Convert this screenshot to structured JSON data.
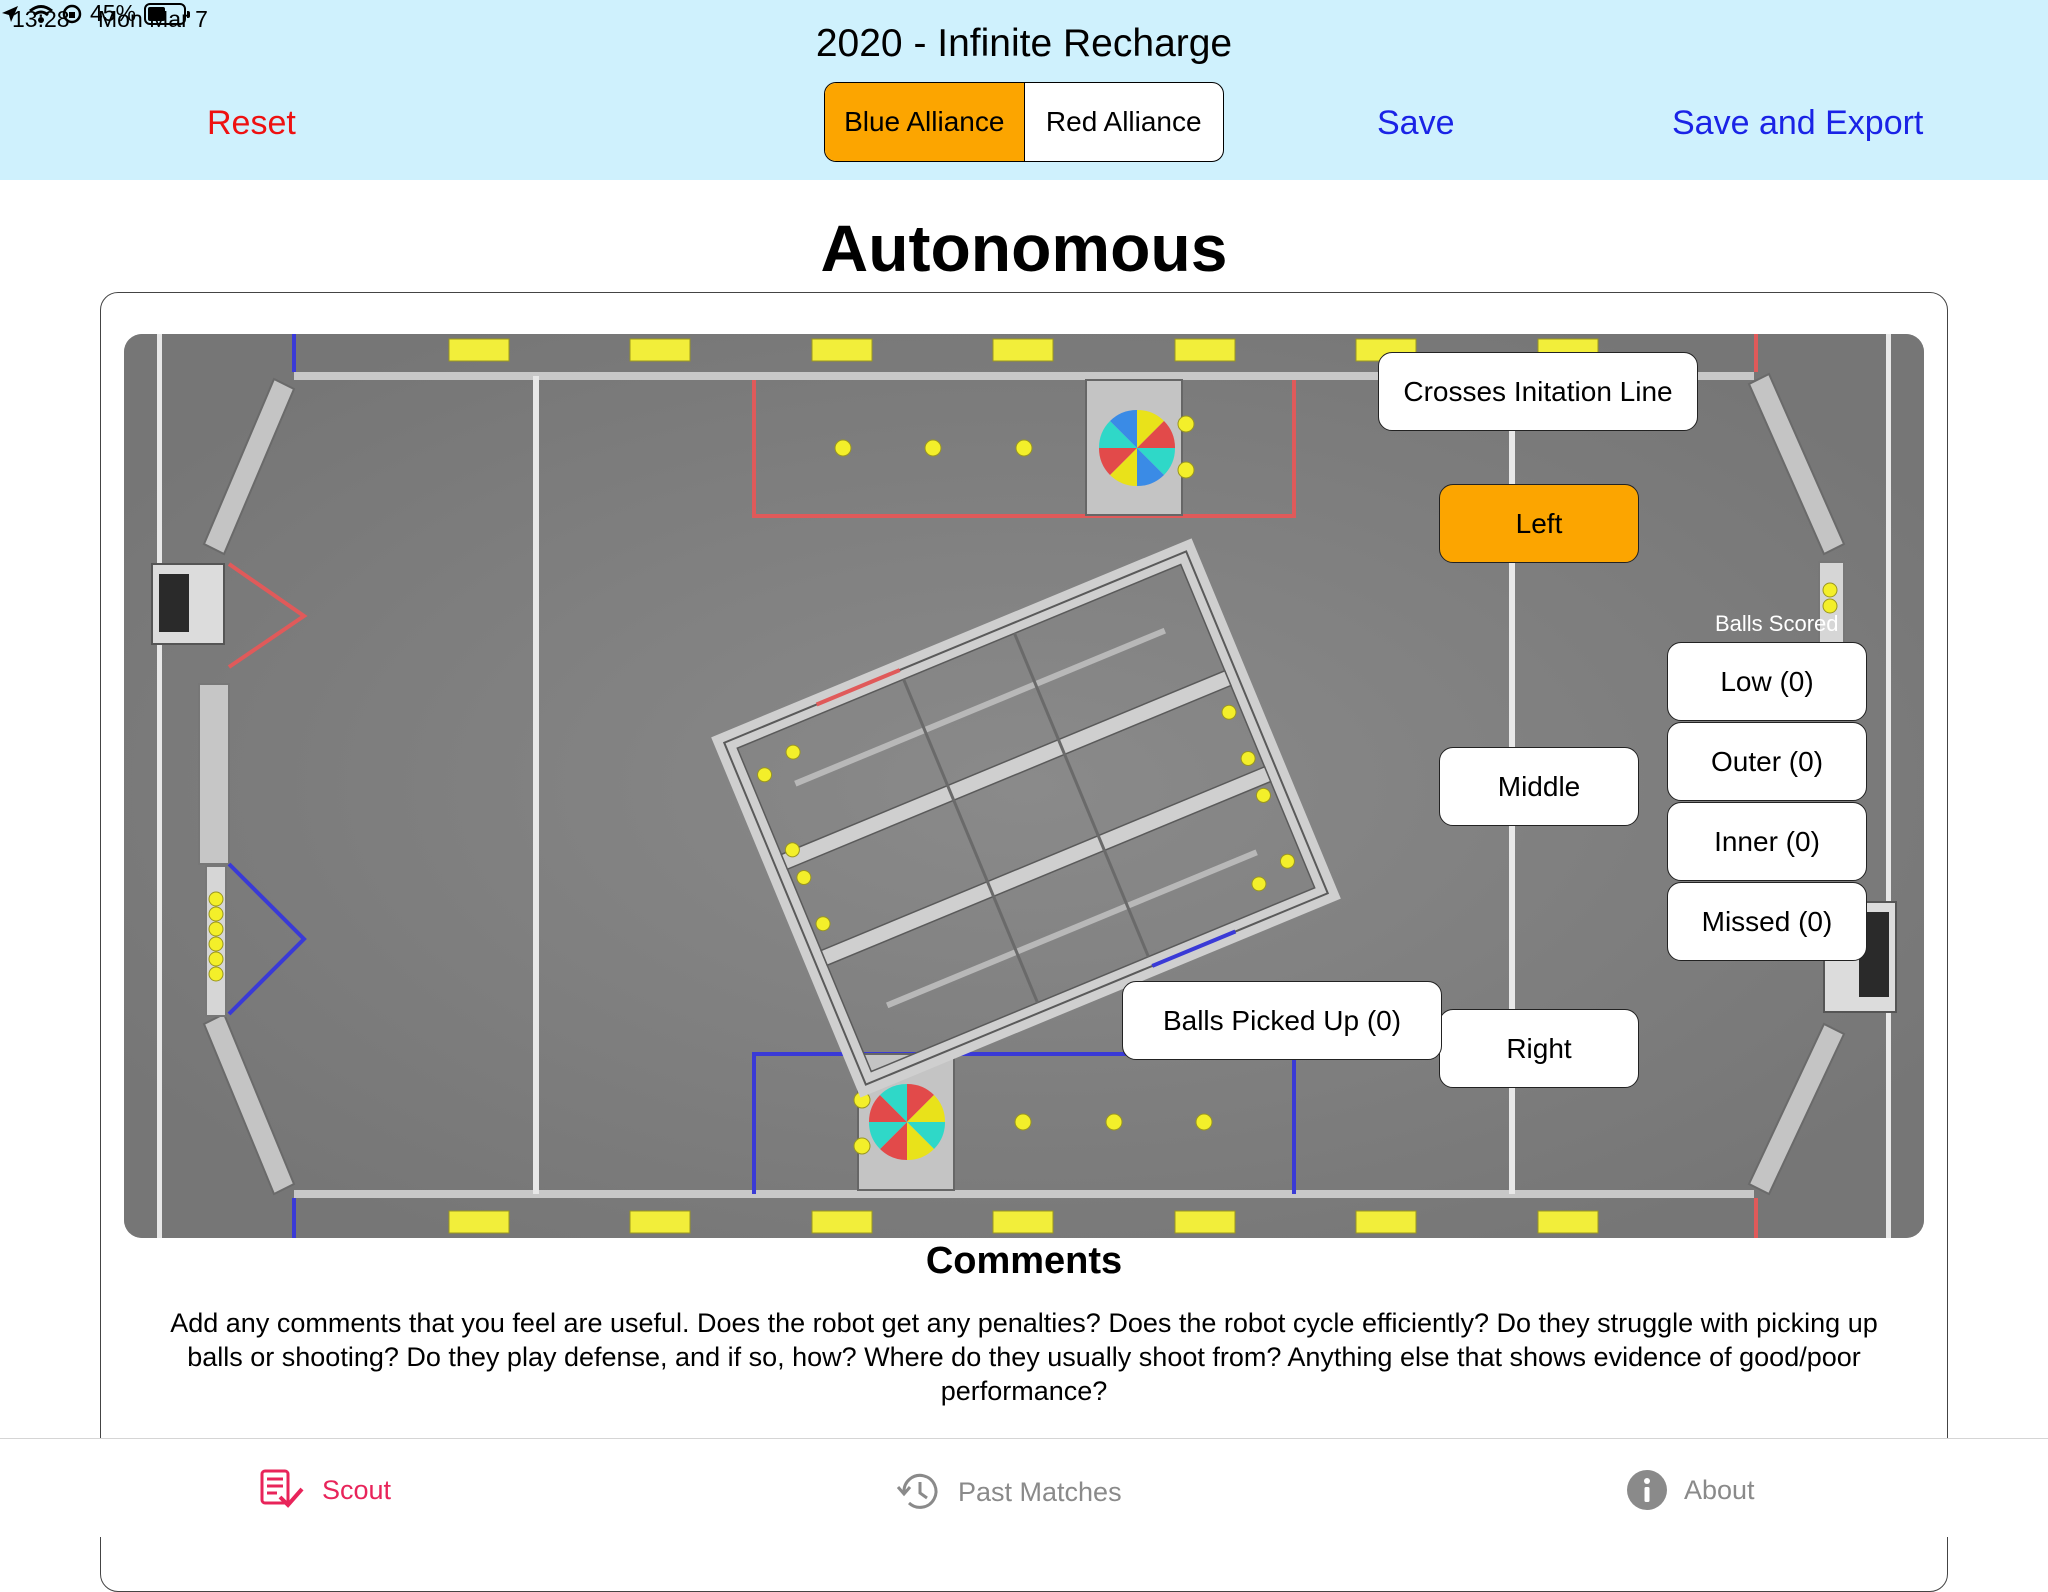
{
  "status_bar": {
    "time": "13:28",
    "date": "Mon Mar 7",
    "battery": "45%"
  },
  "header": {
    "title": "2020 - Infinite Recharge",
    "reset_label": "Reset",
    "save_label": "Save",
    "save_export_label": "Save and Export",
    "alliance_options": [
      "Blue Alliance",
      "Red Alliance"
    ],
    "selected_alliance": "Blue Alliance"
  },
  "section": {
    "title": "Autonomous"
  },
  "field": {
    "crosses_line_label": "Crosses Initation Line",
    "start_positions": [
      "Left",
      "Middle",
      "Right"
    ],
    "selected_start": "Left",
    "balls_scored_label": "Balls Scored",
    "scores": {
      "low": "Low (0)",
      "outer": "Outer (0)",
      "inner": "Inner (0)",
      "missed": "Missed (0)"
    },
    "balls_picked_up_label": "Balls Picked Up (0)"
  },
  "comments": {
    "title": "Comments",
    "text": "Add any comments that you feel are useful. Does the robot get any penalties? Does the robot cycle efficiently? Do they struggle with picking up balls or shooting? Do they play defense, and if so, how? Where do they usually shoot from? Anything else that shows evidence of good/poor performance?"
  },
  "tabs": [
    {
      "label": "Scout",
      "icon": "scout-checklist-icon",
      "active": true
    },
    {
      "label": "Past Matches",
      "icon": "history-icon",
      "active": false
    },
    {
      "label": "About",
      "icon": "info-icon",
      "active": false
    }
  ],
  "colors": {
    "accent_orange": "#fca500",
    "header_bg": "#cff1fd",
    "link_blue": "#1a23e6",
    "reset_red": "#ee1111",
    "tab_active": "#e8245a"
  }
}
